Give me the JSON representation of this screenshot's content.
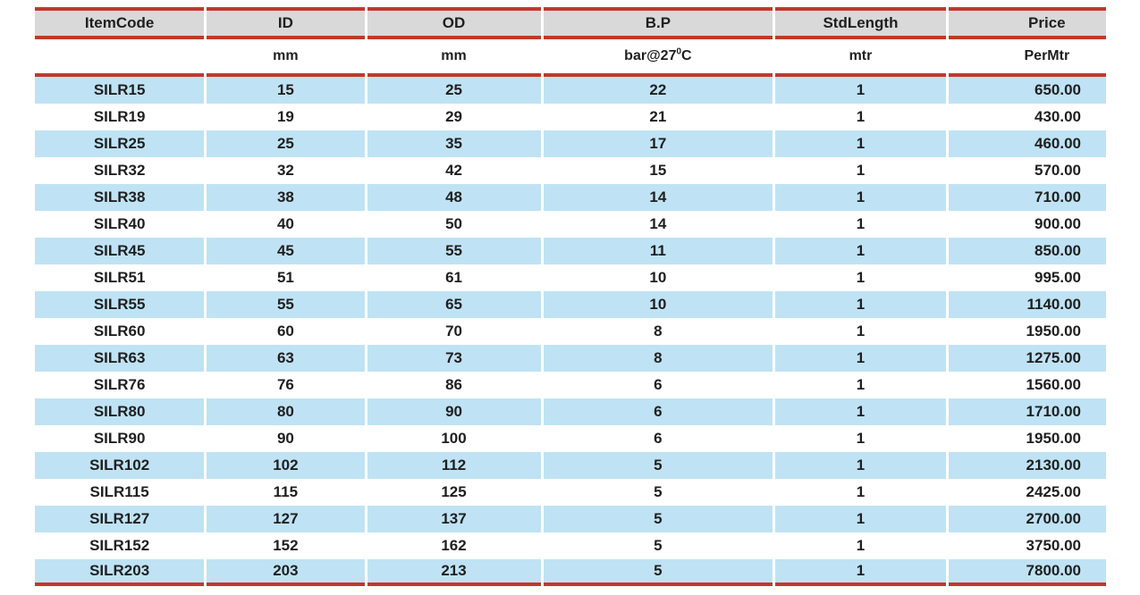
{
  "colors": {
    "accent_red": "#c0392b",
    "header_bg": "#d9d9d9",
    "row_blue": "#bfe3f4",
    "row_white": "#ffffff",
    "text": "#1f1f1f"
  },
  "table": {
    "columns": [
      {
        "key": "item_code",
        "header": "ItemCode",
        "unit": "",
        "unit_sup": "",
        "unit_tail": ""
      },
      {
        "key": "id",
        "header": "ID",
        "unit": "mm",
        "unit_sup": "",
        "unit_tail": ""
      },
      {
        "key": "od",
        "header": "OD",
        "unit": "mm",
        "unit_sup": "",
        "unit_tail": ""
      },
      {
        "key": "bp",
        "header": "B.P",
        "unit": "bar@27",
        "unit_sup": "0",
        "unit_tail": "C"
      },
      {
        "key": "std_length",
        "header": "StdLength",
        "unit": "mtr",
        "unit_sup": "",
        "unit_tail": ""
      },
      {
        "key": "price",
        "header": "Price",
        "unit": "PerMtr",
        "unit_sup": "",
        "unit_tail": ""
      }
    ],
    "rows": [
      [
        "SILR15",
        "15",
        "25",
        "22",
        "1",
        "650.00"
      ],
      [
        "SILR19",
        "19",
        "29",
        "21",
        "1",
        "430.00"
      ],
      [
        "SILR25",
        "25",
        "35",
        "17",
        "1",
        "460.00"
      ],
      [
        "SILR32",
        "32",
        "42",
        "15",
        "1",
        "570.00"
      ],
      [
        "SILR38",
        "38",
        "48",
        "14",
        "1",
        "710.00"
      ],
      [
        "SILR40",
        "40",
        "50",
        "14",
        "1",
        "900.00"
      ],
      [
        "SILR45",
        "45",
        "55",
        "11",
        "1",
        "850.00"
      ],
      [
        "SILR51",
        "51",
        "61",
        "10",
        "1",
        "995.00"
      ],
      [
        "SILR55",
        "55",
        "65",
        "10",
        "1",
        "1140.00"
      ],
      [
        "SILR60",
        "60",
        "70",
        "8",
        "1",
        "1950.00"
      ],
      [
        "SILR63",
        "63",
        "73",
        "8",
        "1",
        "1275.00"
      ],
      [
        "SILR76",
        "76",
        "86",
        "6",
        "1",
        "1560.00"
      ],
      [
        "SILR80",
        "80",
        "90",
        "6",
        "1",
        "1710.00"
      ],
      [
        "SILR90",
        "90",
        "100",
        "6",
        "1",
        "1950.00"
      ],
      [
        "SILR102",
        "102",
        "112",
        "5",
        "1",
        "2130.00"
      ],
      [
        "SILR115",
        "115",
        "125",
        "5",
        "1",
        "2425.00"
      ],
      [
        "SILR127",
        "127",
        "137",
        "5",
        "1",
        "2700.00"
      ],
      [
        "SILR152",
        "152",
        "162",
        "5",
        "1",
        "3750.00"
      ],
      [
        "SILR203",
        "203",
        "213",
        "5",
        "1",
        "7800.00"
      ]
    ]
  }
}
